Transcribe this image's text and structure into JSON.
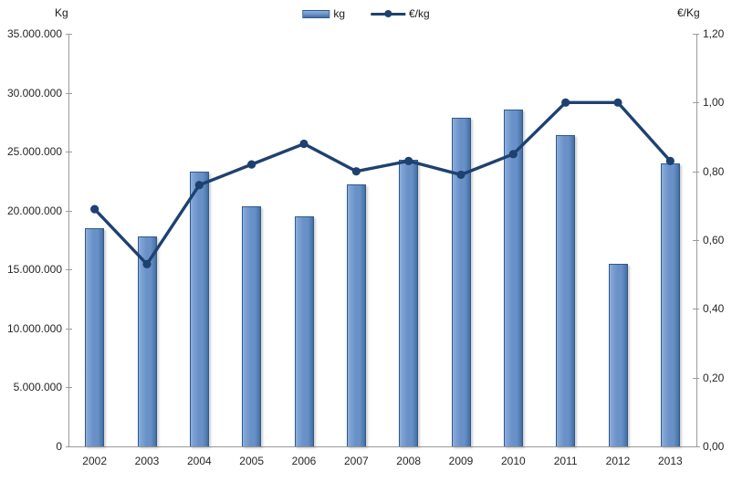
{
  "chart_data": {
    "type": "combo",
    "title": "",
    "categories": [
      "2002",
      "2003",
      "2004",
      "2005",
      "2006",
      "2007",
      "2008",
      "2009",
      "2010",
      "2011",
      "2012",
      "2013"
    ],
    "series": [
      {
        "name": "kg",
        "type": "bar",
        "axis": "left",
        "color": "#6991C8",
        "values": [
          18500000,
          17800000,
          23300000,
          20400000,
          19500000,
          22200000,
          24300000,
          27900000,
          28600000,
          26400000,
          15500000,
          24000000
        ]
      },
      {
        "name": "€/kg",
        "type": "line",
        "axis": "right",
        "color": "#1E4170",
        "values": [
          0.69,
          0.53,
          0.76,
          0.82,
          0.88,
          0.8,
          0.83,
          0.79,
          0.85,
          1.0,
          1.0,
          0.83
        ]
      }
    ],
    "left_axis": {
      "title": "Kg",
      "min": 0,
      "max": 35000000,
      "tick_step": 5000000,
      "tick_labels": [
        "0",
        "5.000.000",
        "10.000.000",
        "15.000.000",
        "20.000.000",
        "25.000.000",
        "30.000.000",
        "35.000.000"
      ]
    },
    "right_axis": {
      "title": "€/Kg",
      "min": 0,
      "max": 1.2,
      "tick_step": 0.2,
      "tick_labels": [
        "0,00",
        "0,20",
        "0,40",
        "0,60",
        "0,80",
        "1,00",
        "1,20"
      ]
    },
    "legend": {
      "position": "top-center"
    },
    "grid": false
  }
}
